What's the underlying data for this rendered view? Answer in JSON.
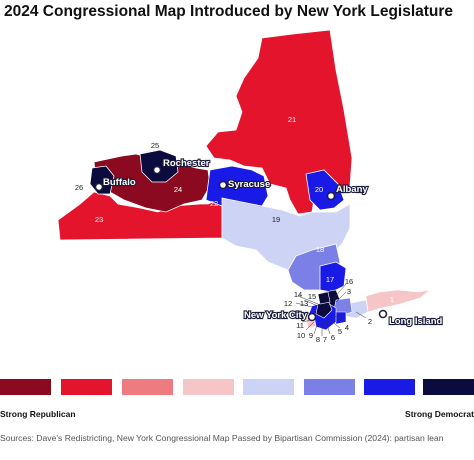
{
  "title": "2024 Congressional Map Introduced by New York Legislature",
  "colors": {
    "strong_republican": "#8b0a1f",
    "republican": "#e3142b",
    "lean_republican": "#ee7b7f",
    "tilt_republican": "#f6c5c7",
    "tilt_democrat": "#cdd3f4",
    "lean_democrat": "#7b80e6",
    "democrat": "#1a1ae6",
    "strong_democrat": "#0b0b3d"
  },
  "districts": {
    "d21": "21",
    "d23": "23",
    "d24": "24",
    "d25": "25",
    "d26": "26",
    "d22": "22",
    "d20": "20",
    "d19": "19",
    "d18": "18",
    "d17": "17",
    "d16": "16",
    "d3": "3",
    "d1": "1",
    "d2": "2",
    "d4": "4",
    "d5": "5",
    "d6": "6",
    "d7": "7",
    "d8": "8",
    "d9": "9",
    "d10": "10",
    "d11": "11",
    "d12": "12",
    "d13": "13",
    "d14": "14",
    "d15": "15"
  },
  "cities": {
    "buffalo": "Buffalo",
    "rochester": "Rochester",
    "syracuse": "Syracuse",
    "albany": "Albany",
    "new_york_city": "New York City",
    "long_island": "Long Island"
  },
  "legend": {
    "swatches": [
      "#8b0a1f",
      "#e3142b",
      "#ee7b7f",
      "#f6c5c7",
      "#cdd3f4",
      "#7b80e6",
      "#1a1ae6",
      "#0b0b3d"
    ],
    "left_label": "Strong Republican",
    "right_label": "Strong Democrat"
  },
  "sources": "Sources: Dave's Redistricting, New York Congressional Map Passed by Bipartisan Commission (2024): partisan lean"
}
